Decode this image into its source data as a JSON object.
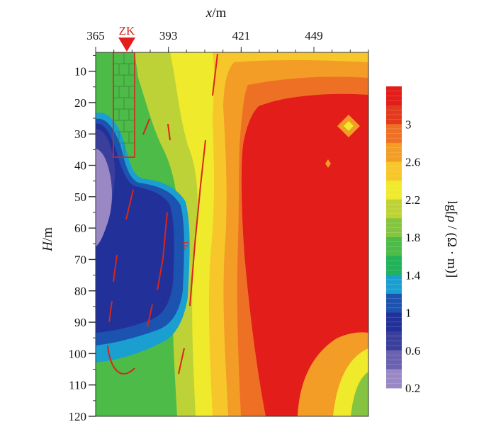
{
  "chart_data": {
    "type": "heatmap",
    "xlabel": {
      "var": "x",
      "unit": "m"
    },
    "ylabel": {
      "var": "H",
      "unit": "m"
    },
    "colorbar_label": {
      "prefix": "lg[",
      "var": "ρ",
      "unit": " / (Ω · m)]"
    },
    "x_ticks": [
      365,
      393,
      421,
      449
    ],
    "x_range": [
      365,
      470
    ],
    "y_ticks": [
      10,
      20,
      30,
      40,
      50,
      60,
      70,
      80,
      90,
      100,
      110,
      120
    ],
    "y_range": [
      4,
      120
    ],
    "colorbar_ticks": [
      3,
      2.6,
      2.2,
      1.8,
      1.4,
      1,
      0.6,
      0.2
    ],
    "colorbar_range": [
      0.2,
      3.4
    ],
    "colors": {
      "scale": [
        "#9a88c4",
        "#6a62b0",
        "#3a3f9c",
        "#22309a",
        "#1c52b0",
        "#1a9fd0",
        "#21b25a",
        "#4cbb48",
        "#84c440",
        "#bdd236",
        "#f0ea2c",
        "#f7c62a",
        "#f39c26",
        "#ee7024",
        "#e33a1e",
        "#e21d1a"
      ],
      "fault": "#d8261a",
      "marker": "#e21d1a"
    },
    "annotations": [
      {
        "id": "borehole",
        "text": "ZK",
        "x": 377,
        "depth_top": 4,
        "depth_bottom": 38
      },
      {
        "id": "fault",
        "text": "F",
        "x": 405,
        "depth": 67
      }
    ],
    "summary_regions": [
      {
        "desc": "low resistivity body",
        "x_range": [
          365,
          405
        ],
        "y_range": [
          28,
          105
        ],
        "value_range": [
          0.2,
          1.0
        ]
      },
      {
        "desc": "high resistivity body",
        "x_range": [
          418,
          470
        ],
        "y_range": [
          18,
          120
        ],
        "value_range": [
          3.0,
          3.4
        ]
      }
    ]
  }
}
